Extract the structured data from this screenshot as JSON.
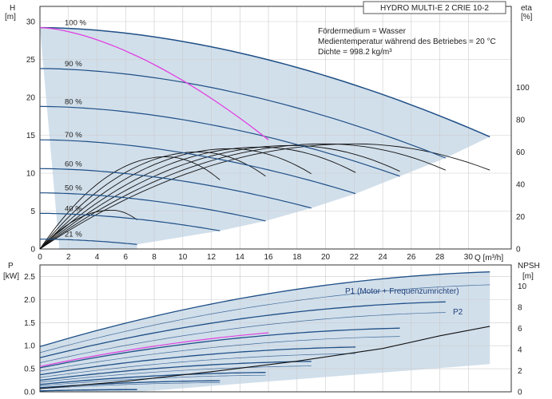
{
  "title_box": "HYDRO MULTI-E 2 CRIE 10-2",
  "medium_info": [
    "Fördermedium = Wasser",
    "Medientemperatur während des Betriebes = 20 °C",
    "Dichte = 998.2 kg/m³"
  ],
  "colors": {
    "speed_curve": "#1f4f86",
    "envelope_fill": "#c9d9e8",
    "efficiency_curve": "#111111",
    "highlight_curve": "#e040e0",
    "grid": "#cccccc"
  },
  "chart_data": [
    {
      "type": "line",
      "name": "head",
      "xlabel": "Q [m³/h]",
      "ylabel_lines": [
        "H",
        "[m]"
      ],
      "y2label_lines": [
        "eta",
        "[%]"
      ],
      "xlim": [
        0,
        33
      ],
      "ylim": [
        0,
        32
      ],
      "y2lim": [
        0,
        150
      ],
      "x_ticks": [
        0,
        2,
        4,
        6,
        8,
        10,
        12,
        14,
        16,
        18,
        20,
        22,
        24,
        26,
        28,
        30
      ],
      "y_ticks": [
        0,
        5,
        10,
        15,
        20,
        25,
        30
      ],
      "y2_ticks": [
        0,
        20,
        40,
        60,
        80,
        100
      ],
      "grid": true,
      "speed_curves": [
        {
          "label": "100 %",
          "h0": 29.2,
          "q_max": 31.5,
          "h_end": 14.8
        },
        {
          "label": "90 %",
          "h0": 23.8,
          "q_max": 28.4,
          "h_end": 12.0
        },
        {
          "label": "80 %",
          "h0": 18.8,
          "q_max": 25.2,
          "h_end": 9.6
        },
        {
          "label": "70 %",
          "h0": 14.4,
          "q_max": 22.1,
          "h_end": 7.3
        },
        {
          "label": "60 %",
          "h0": 10.6,
          "q_max": 19.0,
          "h_end": 5.4
        },
        {
          "label": "50 %",
          "h0": 7.4,
          "q_max": 15.8,
          "h_end": 3.7
        },
        {
          "label": "40 %",
          "h0": 4.7,
          "q_max": 12.6,
          "h_end": 2.4
        },
        {
          "label": "21 %",
          "h0": 1.3,
          "q_max": 6.8,
          "h_end": 0.6
        }
      ],
      "efficiency_curves": [
        {
          "q_max": 31.5,
          "eta_peak": 65,
          "q_peak": 22
        },
        {
          "q_max": 28.4,
          "eta_peak": 65,
          "q_peak": 20
        },
        {
          "q_max": 25.2,
          "eta_peak": 64,
          "q_peak": 17.6
        },
        {
          "q_max": 22.1,
          "eta_peak": 63,
          "q_peak": 15.4
        },
        {
          "q_max": 19.0,
          "eta_peak": 62,
          "q_peak": 13.3
        },
        {
          "q_max": 15.8,
          "eta_peak": 60,
          "q_peak": 11.1
        },
        {
          "q_max": 12.6,
          "eta_peak": 57,
          "q_peak": 8.8
        },
        {
          "q_max": 6.8,
          "eta_peak": 24,
          "q_peak": 5.0
        }
      ],
      "highlight_curve": {
        "from": [
          0,
          29.2
        ],
        "to": [
          16,
          14.4
        ]
      }
    },
    {
      "type": "line",
      "name": "power",
      "ylabel_lines": [
        "P",
        "[kW]"
      ],
      "y2label_lines": [
        "NPSH",
        "[m]"
      ],
      "xlim": [
        0,
        33
      ],
      "ylim": [
        0,
        2.75
      ],
      "y2lim": [
        0,
        12
      ],
      "y_ticks": [
        0,
        0.5,
        1.0,
        1.5,
        2.0,
        2.5
      ],
      "y_tick_labels": [
        "0.0",
        "0.5",
        "1.0",
        "1.5",
        "2.0",
        "2.5"
      ],
      "y2_ticks": [
        0,
        2,
        4,
        6,
        8,
        10
      ],
      "grid": true,
      "series_labels": [
        "P1 (Motor + Frequenzumrichter)",
        "P2"
      ],
      "p1_curves": [
        {
          "q_max": 31.5,
          "p0": 0.98,
          "p_end": 2.6
        },
        {
          "q_max": 28.4,
          "p0": 0.74,
          "p_end": 1.95
        },
        {
          "q_max": 25.2,
          "p0": 0.52,
          "p_end": 1.38
        },
        {
          "q_max": 22.1,
          "p0": 0.37,
          "p_end": 0.97
        },
        {
          "q_max": 19.0,
          "p0": 0.25,
          "p_end": 0.66
        },
        {
          "q_max": 15.8,
          "p0": 0.16,
          "p_end": 0.42
        },
        {
          "q_max": 12.6,
          "p0": 0.09,
          "p_end": 0.24
        },
        {
          "q_max": 6.8,
          "p0": 0.02,
          "p_end": 0.05
        }
      ],
      "p2_curves": [
        {
          "q_max": 31.5,
          "p0": 0.85,
          "p_end": 2.32
        },
        {
          "q_max": 28.4,
          "p0": 0.63,
          "p_end": 1.72
        },
        {
          "q_max": 25.2,
          "p0": 0.45,
          "p_end": 1.2
        },
        {
          "q_max": 22.1,
          "p0": 0.31,
          "p_end": 0.83
        },
        {
          "q_max": 19.0,
          "p0": 0.21,
          "p_end": 0.56
        },
        {
          "q_max": 15.8,
          "p0": 0.13,
          "p_end": 0.36
        },
        {
          "q_max": 12.6,
          "p0": 0.07,
          "p_end": 0.2
        },
        {
          "q_max": 6.8,
          "p0": 0.02,
          "p_end": 0.04
        }
      ],
      "npsh_curve": {
        "x": [
          0,
          6,
          12,
          18,
          24,
          28,
          31.5
        ],
        "y": [
          0.3,
          1.0,
          1.9,
          2.9,
          4.1,
          5.3,
          6.2
        ]
      },
      "highlight_curve": {
        "from": [
          0,
          0.55
        ],
        "to": [
          16,
          1.28
        ]
      }
    }
  ]
}
